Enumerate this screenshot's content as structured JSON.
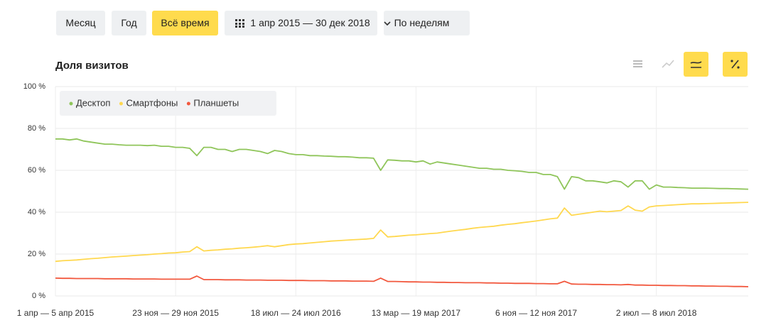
{
  "toolbar": {
    "buttons": [
      "Месяц",
      "Год",
      "Всё время",
      "1 апр 2015 — 30 дек 2018",
      "По неделям"
    ]
  },
  "chart_data": {
    "type": "line",
    "title": "Доля визитов",
    "legend": "top-left",
    "grid": true,
    "categories": [
      "1 апр — 5 апр 2015",
      null,
      null,
      null,
      null,
      null,
      null,
      null,
      null,
      null,
      null,
      null,
      null,
      null,
      null,
      null,
      null,
      "23 ноя — 29 ноя 2015",
      null,
      null,
      null,
      null,
      null,
      null,
      null,
      null,
      null,
      null,
      null,
      null,
      null,
      null,
      null,
      null,
      "18 июл — 24 июл 2016",
      null,
      null,
      null,
      null,
      null,
      null,
      null,
      null,
      null,
      null,
      null,
      null,
      null,
      null,
      null,
      null,
      "13 мар — 19 мар 2017",
      null,
      null,
      null,
      null,
      null,
      null,
      null,
      null,
      null,
      null,
      null,
      null,
      null,
      null,
      null,
      null,
      "6 ноя — 12 ноя 2017",
      null,
      null,
      null,
      null,
      null,
      null,
      null,
      null,
      null,
      null,
      null,
      null,
      null,
      null,
      null,
      null,
      "2 июл — 8 июл 2018",
      null,
      null,
      null,
      null,
      null,
      null,
      null,
      null,
      null,
      null,
      null,
      null,
      null
    ],
    "ylim": [
      0,
      100
    ],
    "yticks": [
      {
        "value": 0,
        "label": "0 %"
      },
      {
        "value": 20,
        "label": "20 %"
      },
      {
        "value": 40,
        "label": "40 %"
      },
      {
        "value": 60,
        "label": "60 %"
      },
      {
        "value": 80,
        "label": "80 %"
      },
      {
        "value": 100,
        "label": "100 %"
      }
    ],
    "series": [
      {
        "name": "Десктоп",
        "color": "#8fc55a",
        "values": [
          75,
          75,
          74.5,
          75,
          74,
          73.5,
          73,
          72.5,
          72.5,
          72.2,
          72,
          72,
          72,
          71.8,
          72,
          71.5,
          71.5,
          71,
          71,
          70.5,
          67,
          71,
          71,
          70,
          70,
          69,
          70,
          70,
          69.5,
          69,
          68,
          69.5,
          69,
          68,
          67.5,
          67.5,
          67,
          67,
          66.8,
          66.7,
          66.5,
          66.5,
          66.3,
          66,
          66,
          65.8,
          60,
          65,
          64.8,
          64.5,
          64.5,
          64,
          64.5,
          63,
          64,
          63.5,
          63,
          62.5,
          62,
          61.5,
          61,
          61,
          60.5,
          60.5,
          60,
          59.8,
          59.5,
          59,
          59,
          58,
          58,
          57,
          51,
          57,
          56.5,
          55,
          55,
          54.5,
          54,
          55,
          54.5,
          52,
          55,
          55,
          51,
          53,
          52,
          52,
          51.8,
          51.7,
          51.5,
          51.5,
          51.5,
          51.4,
          51.3,
          51.3,
          51.2,
          51.1,
          51
        ]
      },
      {
        "name": "Смартфоны",
        "color": "#ffd84f",
        "values": [
          16.5,
          16.8,
          17,
          17.2,
          17.5,
          17.8,
          18,
          18.3,
          18.6,
          18.8,
          19,
          19.3,
          19.5,
          19.7,
          20,
          20.2,
          20.5,
          20.6,
          21,
          21.2,
          23.5,
          21.5,
          21.8,
          22,
          22.3,
          22.5,
          22.8,
          23,
          23.3,
          23.6,
          24,
          23.5,
          24,
          24.5,
          24.8,
          25,
          25.3,
          25.6,
          25.9,
          26.2,
          26.4,
          26.6,
          26.8,
          27,
          27.2,
          27.5,
          31.5,
          28.2,
          28.4,
          28.7,
          29,
          29.2,
          29.5,
          29.8,
          30,
          30.5,
          31,
          31.4,
          31.8,
          32.3,
          32.7,
          33,
          33.3,
          33.8,
          34.2,
          34.5,
          35,
          35.4,
          35.8,
          36.3,
          36.8,
          37.2,
          42,
          38.5,
          39,
          39.5,
          40,
          40.5,
          40.2,
          40.5,
          40.8,
          43,
          41,
          40.5,
          42.5,
          43,
          43.2,
          43.4,
          43.6,
          43.8,
          44,
          44,
          44.1,
          44.2,
          44.3,
          44.4,
          44.5,
          44.6,
          44.7
        ]
      },
      {
        "name": "Планшеты",
        "color": "#f2583e",
        "values": [
          8.5,
          8.4,
          8.4,
          8.3,
          8.3,
          8.3,
          8.3,
          8.2,
          8.2,
          8.2,
          8.2,
          8.1,
          8.1,
          8.1,
          8.1,
          8,
          8,
          8,
          8,
          8,
          9.5,
          7.8,
          7.8,
          7.8,
          7.7,
          7.7,
          7.7,
          7.6,
          7.6,
          7.6,
          7.5,
          7.5,
          7.5,
          7.4,
          7.4,
          7.4,
          7.3,
          7.3,
          7.3,
          7.2,
          7.2,
          7.2,
          7.1,
          7.1,
          7.1,
          7,
          8.5,
          6.9,
          6.9,
          6.8,
          6.7,
          6.7,
          6.6,
          6.6,
          6.5,
          6.5,
          6.4,
          6.4,
          6.3,
          6.3,
          6.3,
          6.2,
          6.2,
          6.1,
          6.1,
          6,
          6,
          6,
          5.9,
          5.9,
          5.8,
          5.8,
          7,
          5.7,
          5.6,
          5.6,
          5.5,
          5.5,
          5.4,
          5.4,
          5.3,
          5.5,
          5.2,
          5.2,
          5.1,
          5.1,
          5,
          5,
          4.9,
          4.9,
          4.8,
          4.8,
          4.7,
          4.7,
          4.6,
          4.6,
          4.5,
          4.5,
          4.4
        ]
      }
    ]
  }
}
